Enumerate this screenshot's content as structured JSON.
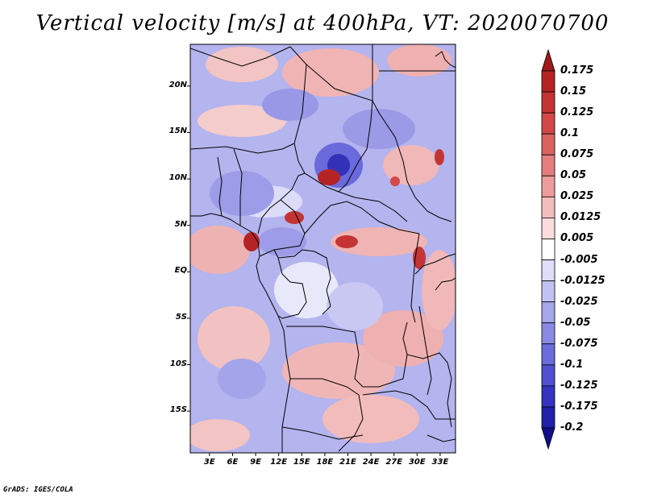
{
  "title": "Vertical velocity [m/s] at 400hPa, VT: 2020070700",
  "credit": "GrADS: IGES/COLA",
  "map": {
    "variable": "Vertical velocity",
    "units": "m/s",
    "level": "400hPa",
    "valid_time": "2020070700",
    "lat_ticks": [
      {
        "label": "20N",
        "value": 20
      },
      {
        "label": "15N",
        "value": 15
      },
      {
        "label": "10N",
        "value": 10
      },
      {
        "label": "5N",
        "value": 5
      },
      {
        "label": "EQ",
        "value": 0
      },
      {
        "label": "5S",
        "value": -5
      },
      {
        "label": "10S",
        "value": -10
      },
      {
        "label": "15S",
        "value": -15
      }
    ],
    "lon_ticks": [
      {
        "label": "3E",
        "value": 3
      },
      {
        "label": "6E",
        "value": 6
      },
      {
        "label": "9E",
        "value": 9
      },
      {
        "label": "12E",
        "value": 12
      },
      {
        "label": "15E",
        "value": 15
      },
      {
        "label": "18E",
        "value": 18
      },
      {
        "label": "21E",
        "value": 21
      },
      {
        "label": "24E",
        "value": 24
      },
      {
        "label": "27E",
        "value": 27
      },
      {
        "label": "30E",
        "value": 30
      },
      {
        "label": "33E",
        "value": 33
      }
    ],
    "lat_range": [
      -19.5,
      24.5
    ],
    "lon_range": [
      0.5,
      35
    ]
  },
  "colorbar": {
    "labels": [
      "0.175",
      "0.15",
      "0.125",
      "0.1",
      "0.075",
      "0.05",
      "0.025",
      "0.0125",
      "0.005",
      "-0.005",
      "-0.0125",
      "-0.025",
      "-0.05",
      "-0.075",
      "-0.1",
      "-0.125",
      "-0.175",
      "-0.2"
    ],
    "colors": [
      "#a01818",
      "#b42424",
      "#c43434",
      "#d24848",
      "#dc6262",
      "#e47e7e",
      "#ec9c9c",
      "#f3bcbc",
      "#fadcdc",
      "#ffffff",
      "#dedef9",
      "#c2c2f2",
      "#a6a6ec",
      "#8a8ae4",
      "#6c6cdc",
      "#5050d0",
      "#3434c0",
      "#2020a8",
      "#10108c"
    ]
  }
}
